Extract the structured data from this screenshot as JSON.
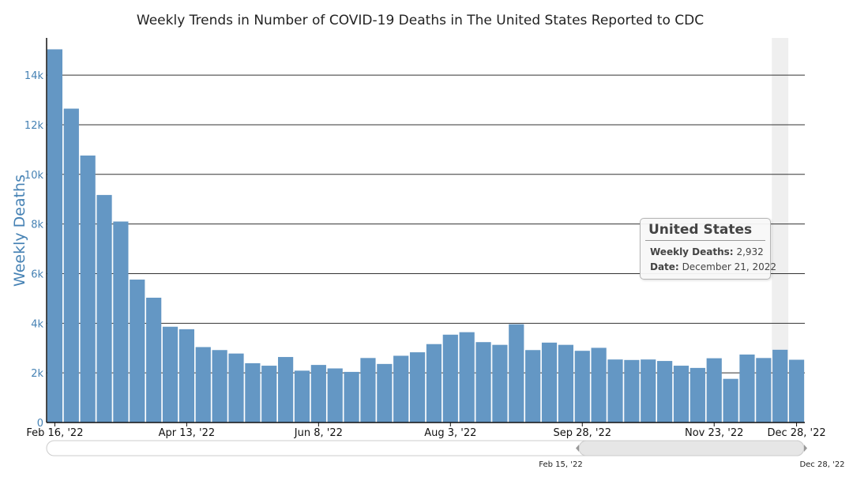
{
  "chart_data": {
    "type": "bar",
    "title": "Weekly Trends in Number of COVID-19 Deaths in The United States Reported to CDC",
    "ylabel": "Weekly Deaths",
    "xlabel": "",
    "ylim": [
      0,
      15500
    ],
    "y_ticks": [
      {
        "value": 0,
        "label": "0"
      },
      {
        "value": 2000,
        "label": "2k"
      },
      {
        "value": 4000,
        "label": "4k"
      },
      {
        "value": 6000,
        "label": "6k"
      },
      {
        "value": 8000,
        "label": "8k"
      },
      {
        "value": 10000,
        "label": "10k"
      },
      {
        "value": 12000,
        "label": "12k"
      },
      {
        "value": 14000,
        "label": "14k"
      }
    ],
    "x_ticks": [
      {
        "index": 0,
        "label": "Feb 16, '22"
      },
      {
        "index": 8,
        "label": "Apr 13, '22"
      },
      {
        "index": 16,
        "label": "Jun 8, '22"
      },
      {
        "index": 24,
        "label": "Aug 3, '22"
      },
      {
        "index": 32,
        "label": "Sep 28, '22"
      },
      {
        "index": 40,
        "label": "Nov 23, '22"
      },
      {
        "index": 45,
        "label": "Dec 28, '22"
      }
    ],
    "values": [
      15040,
      12650,
      10760,
      9170,
      8100,
      5760,
      5030,
      3860,
      3760,
      3040,
      2920,
      2780,
      2390,
      2290,
      2640,
      2090,
      2320,
      2180,
      2040,
      2600,
      2360,
      2690,
      2830,
      3160,
      3540,
      3640,
      3240,
      3130,
      3960,
      2920,
      3220,
      3130,
      2890,
      3010,
      2540,
      2520,
      2540,
      2480,
      2290,
      2200,
      2590,
      1760,
      2740,
      2600,
      2932,
      2530
    ],
    "highlighted_index": 44,
    "bar_color": "#6497c4",
    "highlight_band_color": "#efefef"
  },
  "tooltip": {
    "title": "United States",
    "rows": [
      {
        "key": "Weekly Deaths:",
        "value": "2,932"
      },
      {
        "key": "Date:",
        "value": "December 21, 2022"
      }
    ]
  },
  "navigator": {
    "start_label": "Feb 15, '22",
    "end_label": "Dec 28, '22"
  }
}
